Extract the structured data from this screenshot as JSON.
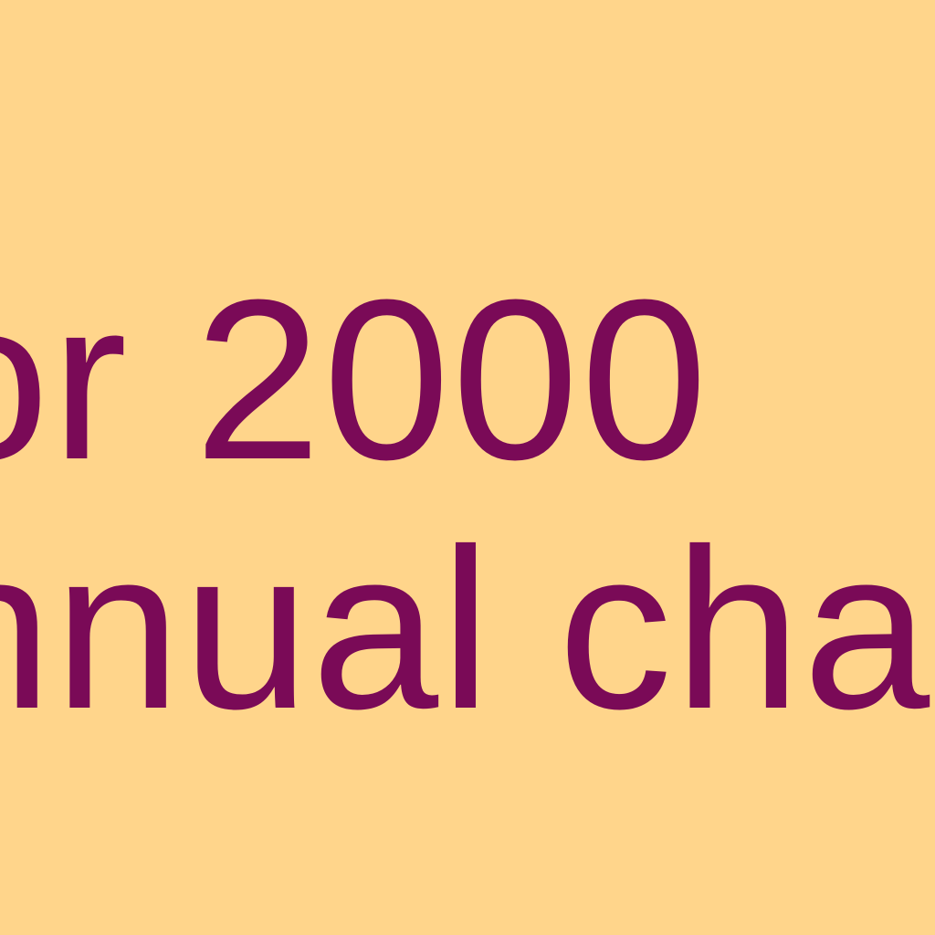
{
  "colors": {
    "background": "#FFD58B",
    "text": "#7A0A57"
  },
  "lines": [
    "or 2000",
    "nnual cha"
  ]
}
